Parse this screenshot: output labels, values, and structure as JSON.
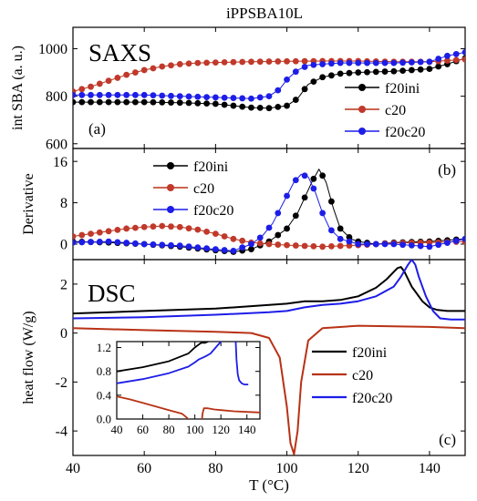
{
  "figure": {
    "title": "iPPSBA10L",
    "xlabel": "T (°C)",
    "xticks": [
      40,
      60,
      80,
      100,
      120,
      140
    ]
  },
  "colors": {
    "f20ini": "#000000",
    "c20": "#b83216",
    "f20c20": "#1d1de8",
    "c20_marker_fill": "#c0392b"
  },
  "chart_data": [
    {
      "type": "scatter",
      "panel_id": "SAXS",
      "panel_text": "SAXS",
      "panel_label": "(a)",
      "ylabel": "int SBA (a. u.)",
      "xlim": [
        40,
        150
      ],
      "ylim": [
        580,
        1090
      ],
      "yticks": [
        600,
        800,
        1000
      ],
      "legend_position": "center-right",
      "series": [
        {
          "name": "f20ini",
          "color_key": "f20ini",
          "x": [
            40,
            50,
            60,
            70,
            80,
            90,
            95,
            100,
            103,
            106,
            110,
            115,
            120,
            130,
            140,
            145,
            150
          ],
          "y": [
            775,
            775,
            775,
            773,
            768,
            752,
            750,
            760,
            790,
            850,
            880,
            895,
            900,
            905,
            915,
            935,
            960
          ]
        },
        {
          "name": "c20",
          "color_key": "c20",
          "x": [
            40,
            45,
            50,
            55,
            60,
            65,
            70,
            75,
            80,
            90,
            100,
            110,
            120,
            130,
            140,
            150
          ],
          "y": [
            820,
            840,
            865,
            890,
            910,
            925,
            935,
            940,
            942,
            945,
            947,
            948,
            948,
            945,
            945,
            955
          ]
        },
        {
          "name": "f20c20",
          "color_key": "f20c20",
          "x": [
            40,
            50,
            60,
            70,
            80,
            90,
            95,
            98,
            100,
            103,
            106,
            110,
            115,
            120,
            130,
            140,
            145,
            150
          ],
          "y": [
            805,
            805,
            805,
            800,
            795,
            790,
            800,
            830,
            870,
            910,
            930,
            935,
            940,
            940,
            940,
            945,
            970,
            985
          ]
        }
      ]
    },
    {
      "type": "scatter",
      "panel_id": "Derivative",
      "panel_label": "(b)",
      "ylabel": "Derivative",
      "xlim": [
        40,
        150
      ],
      "ylim": [
        -3,
        18.5
      ],
      "yticks": [
        0,
        8,
        16
      ],
      "legend_position": "top-center",
      "series": [
        {
          "name": "f20ini",
          "color_key": "f20ini",
          "x": [
            40,
            50,
            60,
            70,
            80,
            85,
            90,
            95,
            100,
            103,
            105,
            107,
            109,
            111,
            113,
            115,
            118,
            120,
            125,
            130,
            140,
            150
          ],
          "y": [
            0.5,
            0.3,
            0,
            -0.5,
            -1.2,
            -1.5,
            -1,
            0.5,
            3,
            6,
            9,
            12,
            14.5,
            12,
            7,
            3,
            1,
            0.5,
            0,
            0.3,
            0.5,
            1
          ]
        },
        {
          "name": "c20",
          "color_key": "c20",
          "x": [
            40,
            45,
            50,
            55,
            60,
            65,
            70,
            75,
            80,
            85,
            90,
            95,
            100,
            110,
            120,
            130,
            140,
            150
          ],
          "y": [
            1.5,
            2,
            2.5,
            3,
            3.3,
            3.5,
            3.3,
            2.8,
            2,
            1,
            0.3,
            0,
            -0.2,
            -0.5,
            -0.2,
            0.2,
            0.3,
            0.5
          ]
        },
        {
          "name": "f20c20",
          "color_key": "f20c20",
          "x": [
            40,
            50,
            60,
            70,
            80,
            85,
            90,
            93,
            96,
            99,
            102,
            104,
            106,
            108,
            110,
            112,
            115,
            120,
            130,
            140,
            150
          ],
          "y": [
            0.3,
            0.5,
            0,
            -0.3,
            -1,
            -1.3,
            0,
            1.5,
            4,
            8,
            12,
            13.5,
            13,
            10,
            6,
            3,
            1,
            0,
            0,
            -0.5,
            1
          ]
        }
      ]
    },
    {
      "type": "line",
      "panel_id": "DSC",
      "panel_text": "DSC",
      "panel_label": "(c)",
      "ylabel": "heat flow (W/g)",
      "xlim": [
        40,
        150
      ],
      "ylim": [
        -5,
        3
      ],
      "yticks": [
        -4,
        -2,
        0,
        2
      ],
      "legend_position": "lower-right",
      "series": [
        {
          "name": "f20ini",
          "color_key": "f20ini",
          "x": [
            40,
            60,
            80,
            95,
            100,
            105,
            110,
            115,
            120,
            125,
            128,
            130,
            131,
            132,
            133,
            135,
            138,
            140,
            142,
            145,
            150
          ],
          "y": [
            0.8,
            0.9,
            1.0,
            1.15,
            1.2,
            1.3,
            1.3,
            1.35,
            1.5,
            1.85,
            2.2,
            2.5,
            2.65,
            2.7,
            2.5,
            1.9,
            1.3,
            1.05,
            0.95,
            0.9,
            0.9
          ]
        },
        {
          "name": "c20",
          "color_key": "c20",
          "x": [
            40,
            60,
            80,
            90,
            95,
            98,
            100,
            101,
            102,
            103,
            104,
            106,
            110,
            120,
            140,
            150
          ],
          "y": [
            0.2,
            0.12,
            0.05,
            0,
            -0.2,
            -1,
            -3,
            -4.5,
            -4.95,
            -4,
            -2,
            -0.3,
            0.2,
            0.3,
            0.25,
            0.2
          ]
        },
        {
          "name": "f20c20",
          "color_key": "f20c20",
          "x": [
            40,
            60,
            80,
            95,
            100,
            105,
            110,
            115,
            120,
            125,
            130,
            132,
            134,
            135,
            136,
            137,
            139,
            141,
            143,
            146,
            150
          ],
          "y": [
            0.6,
            0.65,
            0.75,
            0.85,
            0.9,
            1.05,
            1.15,
            1.2,
            1.3,
            1.5,
            1.9,
            2.3,
            2.8,
            3.0,
            2.8,
            2.3,
            1.5,
            0.9,
            0.6,
            0.55,
            0.55
          ]
        }
      ]
    },
    {
      "type": "line",
      "panel_id": "DSC-inset",
      "xlim": [
        40,
        150
      ],
      "ylim": [
        0,
        1.3
      ],
      "xticks": [
        40,
        60,
        80,
        100,
        120,
        140
      ],
      "yticks": [
        0,
        0.4,
        0.8,
        1.2
      ],
      "ytick_labels": [
        "0.0",
        "0.4",
        "0.8",
        "1.2"
      ],
      "series": [
        {
          "name": "f20ini",
          "color_key": "f20ini",
          "x": [
            40,
            60,
            80,
            95,
            100,
            103,
            105,
            108,
            112,
            116,
            118,
            120
          ],
          "y": [
            0.8,
            0.87,
            0.97,
            1.1,
            1.2,
            1.25,
            1.28,
            1.28,
            1.32,
            1.38,
            1.45,
            1.55
          ]
        },
        {
          "name": "c20",
          "color_key": "c20",
          "x": [
            40,
            50,
            60,
            70,
            80,
            90,
            93,
            95,
            97
          ],
          "y": [
            0.38,
            0.33,
            0.27,
            0.21,
            0.15,
            0.09,
            0.04,
            0.0,
            -0.4
          ]
        },
        {
          "name": "c20",
          "color_key": "c20",
          "x": [
            104,
            106,
            107,
            110,
            115,
            120,
            130,
            140,
            150
          ],
          "y": [
            -0.3,
            0.1,
            0.18,
            0.18,
            0.16,
            0.15,
            0.13,
            0.12,
            0.11
          ]
        },
        {
          "name": "f20c20",
          "color_key": "f20c20",
          "x": [
            40,
            60,
            80,
            95,
            100,
            103,
            106,
            108,
            112,
            116,
            120,
            122
          ],
          "y": [
            0.6,
            0.67,
            0.77,
            0.88,
            0.95,
            1.0,
            1.03,
            1.05,
            1.1,
            1.2,
            1.3,
            1.45
          ]
        },
        {
          "name": "f20c20",
          "color_key": "f20c20",
          "x": [
            131,
            132,
            133,
            134,
            136,
            138,
            141
          ],
          "y": [
            1.5,
            1.0,
            0.75,
            0.65,
            0.6,
            0.58,
            0.58
          ]
        }
      ]
    }
  ]
}
